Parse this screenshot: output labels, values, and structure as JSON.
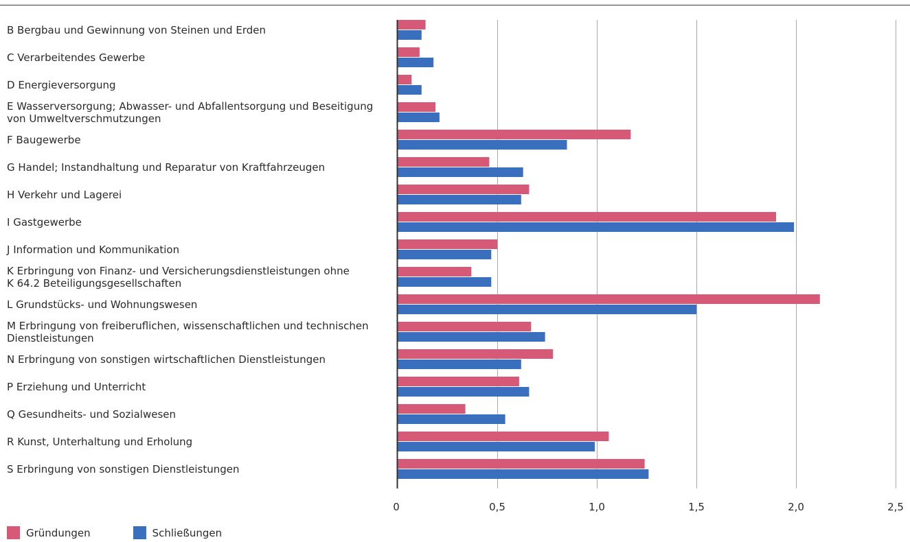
{
  "chart_data": {
    "type": "bar",
    "orientation": "horizontal",
    "categories": [
      [
        "B Bergbau und Gewinnung von Steinen und Erden"
      ],
      [
        "C Verarbeitendes Gewerbe"
      ],
      [
        "D Energieversorgung"
      ],
      [
        "E Wasserversorgung; Abwasser- und Abfallentsorgung und Beseitigung",
        "von Umweltverschmutzungen"
      ],
      [
        "F Baugewerbe"
      ],
      [
        "G Handel; Instandhaltung und Reparatur von Kraftfahrzeugen"
      ],
      [
        "H Verkehr und Lagerei"
      ],
      [
        "I Gastgewerbe"
      ],
      [
        "J Information und Kommunikation"
      ],
      [
        "K Erbringung von Finanz- und Versicherungsdienstleistungen ohne",
        "K 64.2 Beteiligungsgesellschaften"
      ],
      [
        "L Grundstücks- und Wohnungswesen"
      ],
      [
        "M Erbringung von freiberuflichen, wissenschaftlichen und technischen",
        "Dienstleistungen"
      ],
      [
        "N Erbringung von sonstigen wirtschaftlichen Dienstleistungen"
      ],
      [
        "P Erziehung und Unterricht"
      ],
      [
        "Q Gesundheits- und Sozialwesen"
      ],
      [
        "R Kunst, Unterhaltung und Erholung"
      ],
      [
        "S Erbringung von sonstigen Dienstleistungen"
      ]
    ],
    "series": [
      {
        "name": "Gründungen",
        "color": "#d65a78",
        "values": [
          0.14,
          0.11,
          0.07,
          0.19,
          1.17,
          0.46,
          0.66,
          1.9,
          0.5,
          0.37,
          2.12,
          0.67,
          0.78,
          0.61,
          0.34,
          1.06,
          1.24
        ]
      },
      {
        "name": "Schließungen",
        "color": "#3a6fbd",
        "values": [
          0.12,
          0.18,
          0.12,
          0.21,
          0.85,
          0.63,
          0.62,
          1.99,
          0.47,
          0.47,
          1.5,
          0.74,
          0.62,
          0.66,
          0.54,
          0.99,
          1.26
        ]
      }
    ],
    "xlim": [
      0,
      2.5
    ],
    "xticks": [
      0,
      0.5,
      1.0,
      1.5,
      2.0,
      2.5
    ],
    "xtick_labels": [
      "0",
      "0,5",
      "1,0",
      "1,5",
      "2,0",
      "2,5"
    ],
    "grid": true,
    "legend_position": "bottom-left"
  },
  "legend": {
    "items": [
      {
        "label": "Gründungen",
        "color": "#d65a78"
      },
      {
        "label": "Schließungen",
        "color": "#3a6fbd"
      }
    ]
  }
}
